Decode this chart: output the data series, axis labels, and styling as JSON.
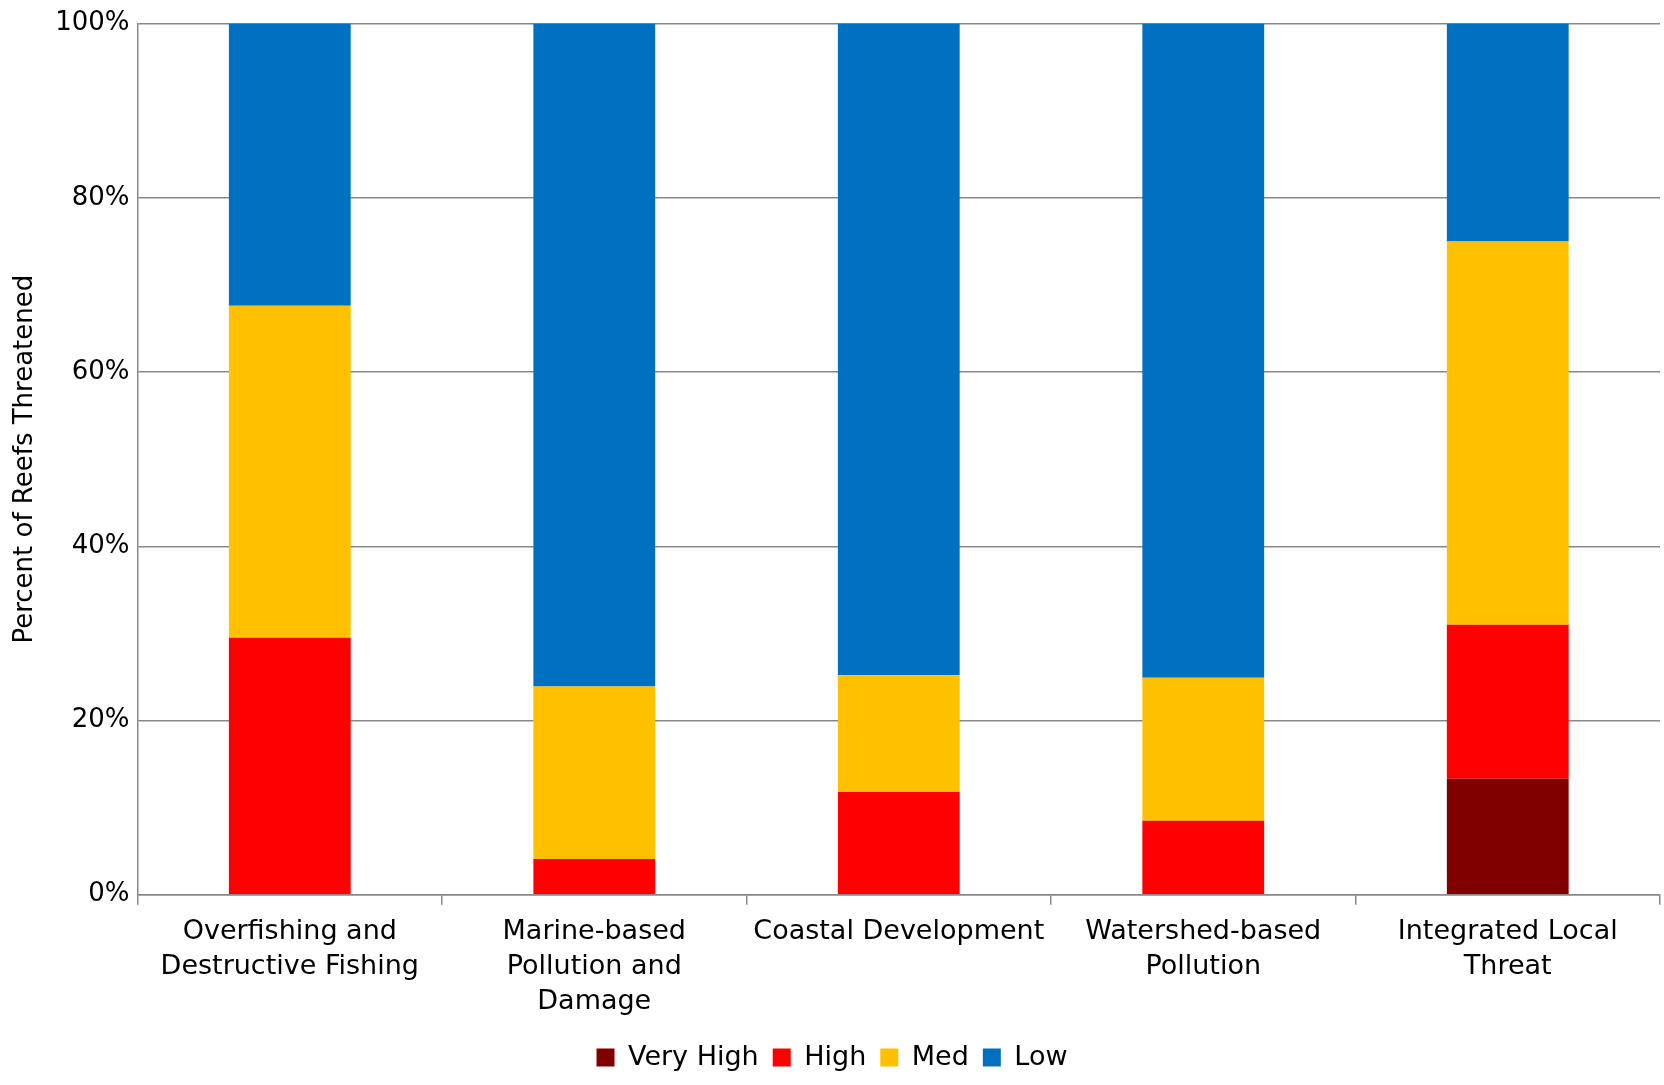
{
  "chart_data": {
    "type": "bar",
    "stacked": true,
    "ylabel": "Percent of Reefs Threatened",
    "categories": [
      "Overfishing and Destructive Fishing",
      "Marine-based Pollution and Damage",
      "Coastal Development",
      "Watershed-based Pollution",
      "Integrated Local Threat"
    ],
    "series": [
      {
        "name": "Very High",
        "color": "#800000",
        "values": [
          0,
          0,
          0,
          0,
          13.3
        ]
      },
      {
        "name": "High",
        "color": "#ff0000",
        "values": [
          29.5,
          4.1,
          11.8,
          8.5,
          17.7
        ]
      },
      {
        "name": "Med",
        "color": "#ffc000",
        "values": [
          38.1,
          19.8,
          13.4,
          16.4,
          44.0
        ]
      },
      {
        "name": "Low",
        "color": "#0070c0",
        "values": [
          32.4,
          76.1,
          74.8,
          75.1,
          25.0
        ]
      }
    ],
    "ylim": [
      0,
      100
    ],
    "yticks": [
      {
        "value": 0,
        "label": "0%"
      },
      {
        "value": 20,
        "label": "20%"
      },
      {
        "value": 40,
        "label": "40%"
      },
      {
        "value": 60,
        "label": "60%"
      },
      {
        "value": 80,
        "label": "80%"
      },
      {
        "value": 100,
        "label": "100%"
      }
    ],
    "grid": "y",
    "legend": "bottom"
  }
}
